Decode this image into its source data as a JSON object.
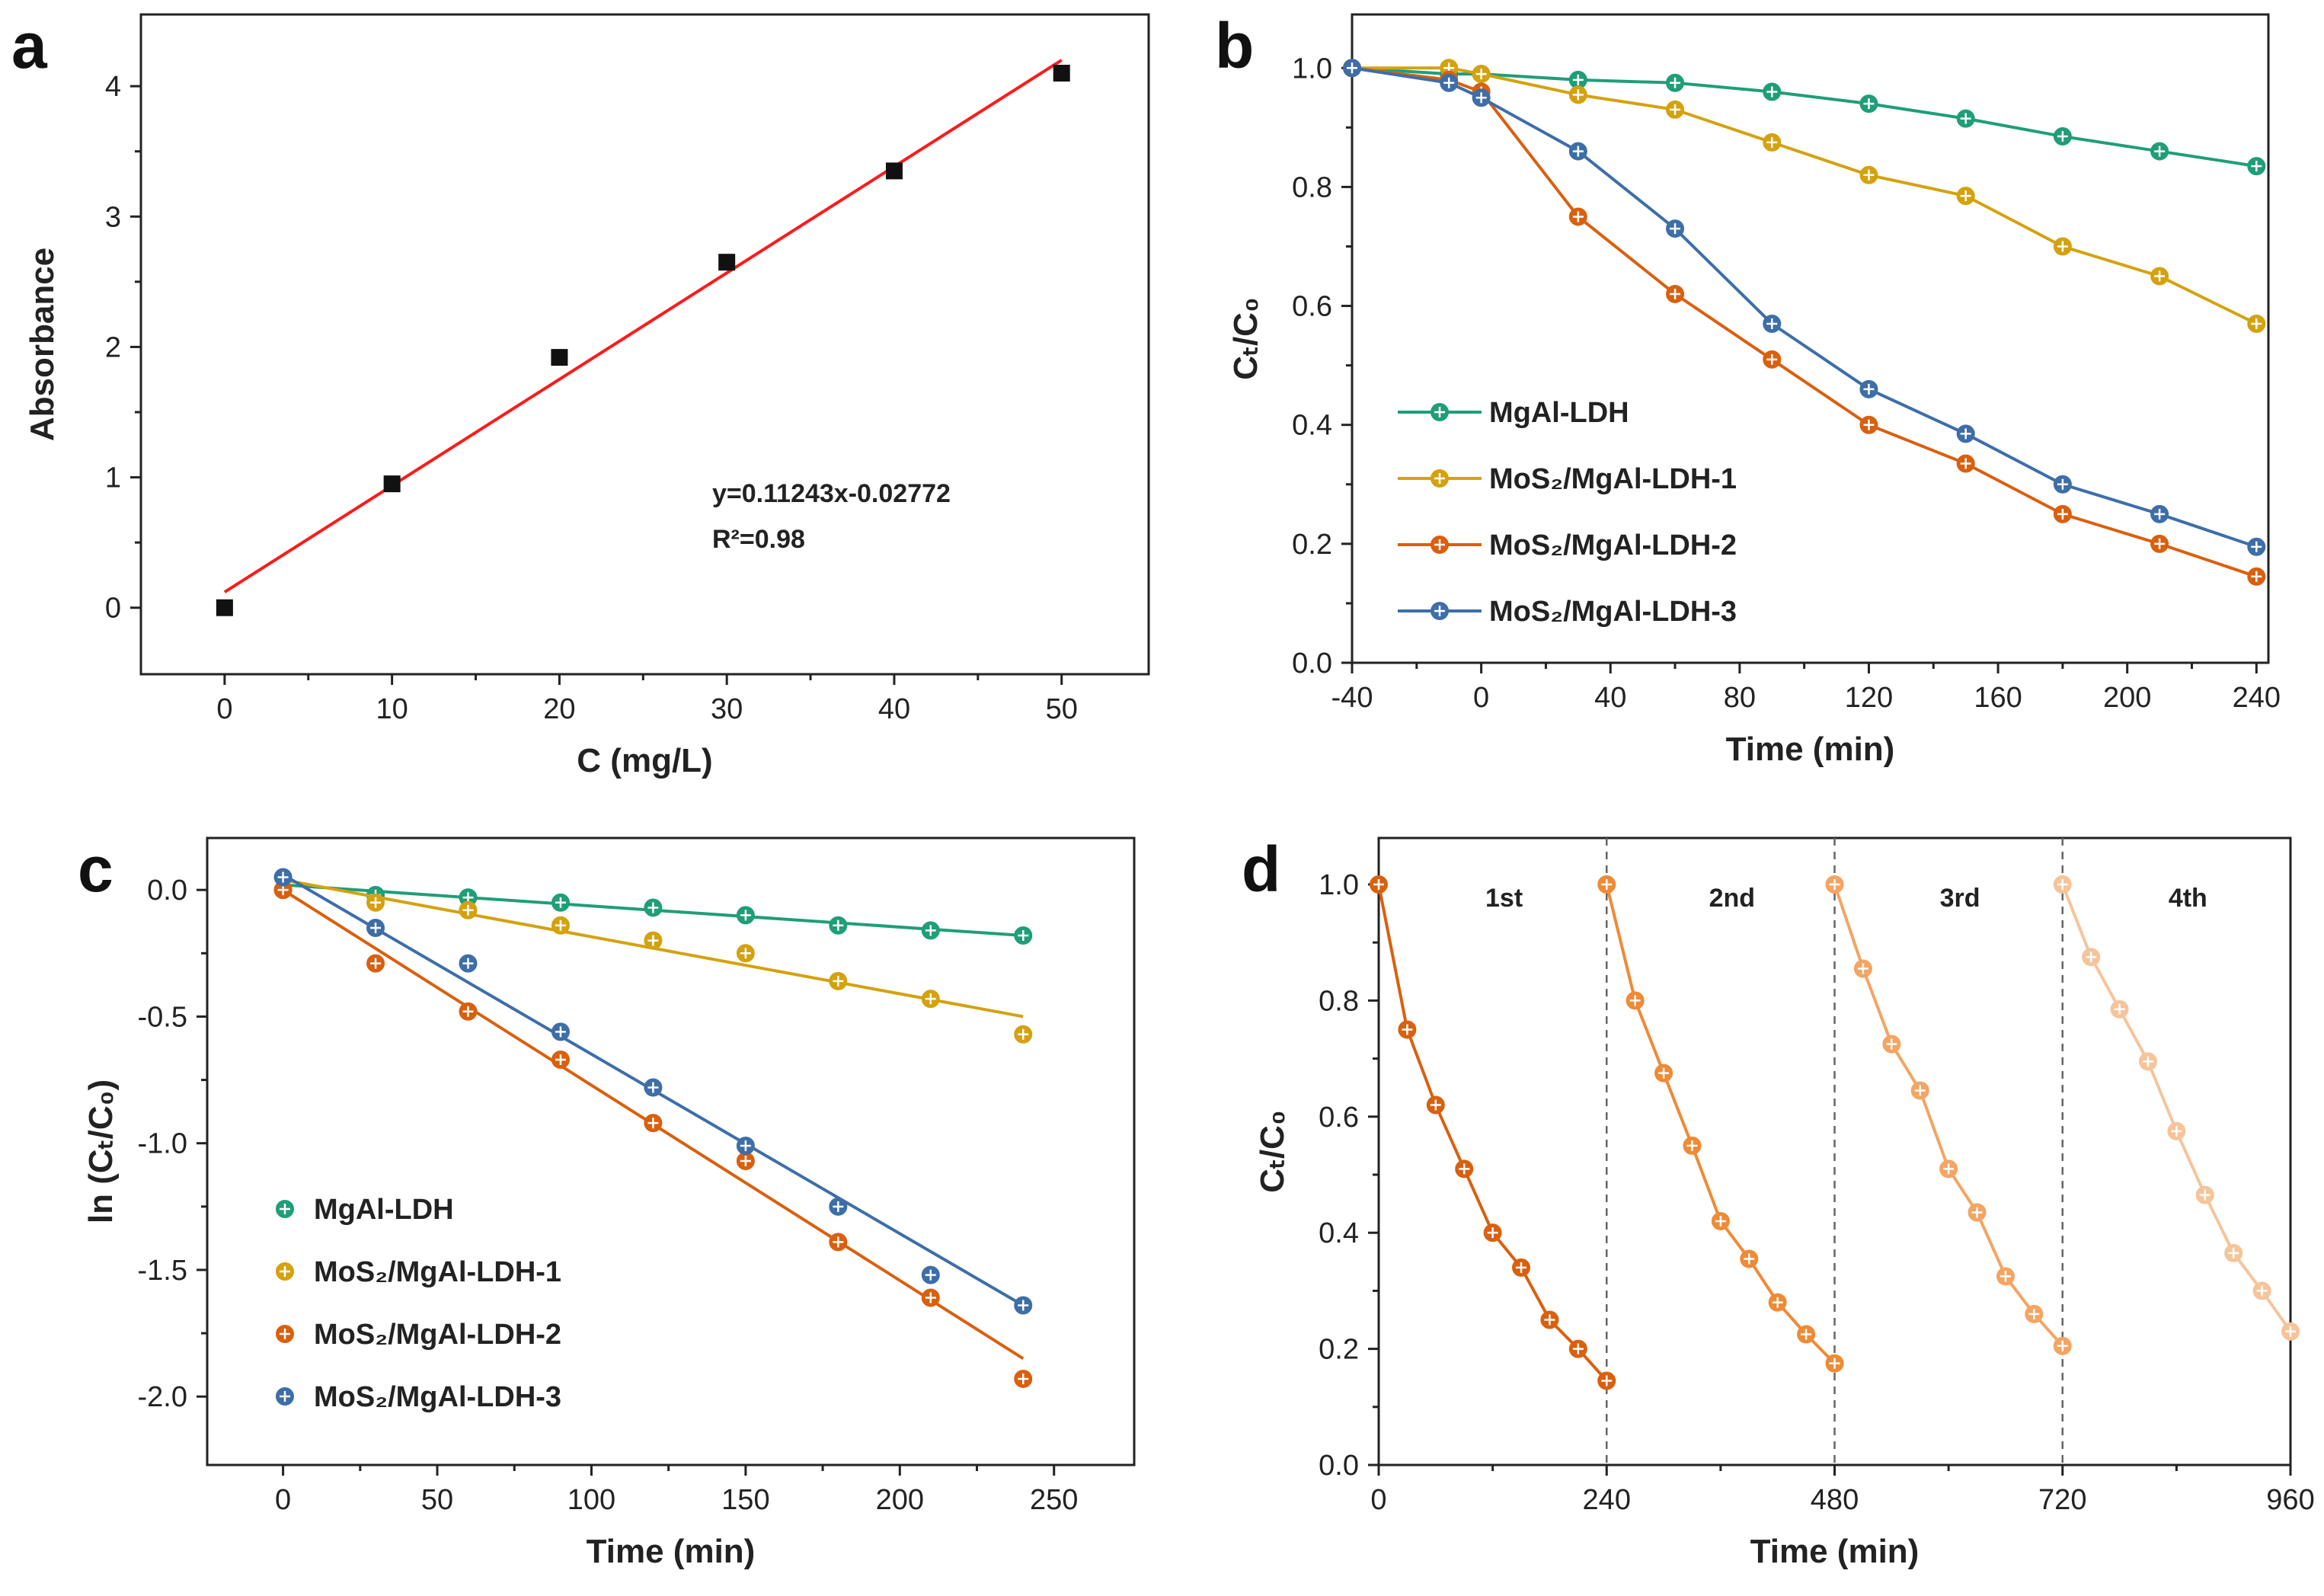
{
  "chart_data": [
    {
      "panel": "a",
      "type": "scatter",
      "xlabel": "C (mg/L)",
      "ylabel": "Absorbance",
      "xlim": [
        -5,
        55.2
      ],
      "ylim": [
        -0.51,
        4.55
      ],
      "xticks": [
        0,
        10,
        20,
        30,
        40,
        50
      ],
      "yticks": [
        0,
        1,
        2,
        3,
        4
      ],
      "series": [
        {
          "name": "data",
          "color": "#111111",
          "marker": "square",
          "x": [
            0,
            10,
            20,
            30,
            40,
            50
          ],
          "y": [
            0.0,
            0.95,
            1.92,
            2.65,
            3.35,
            4.1
          ]
        },
        {
          "name": "fit",
          "color": "#ff1a1a",
          "marker": "none",
          "x": [
            0,
            50
          ],
          "y": [
            0.12,
            4.2
          ]
        }
      ],
      "annotations": [
        "y=0.11243x-0.02772",
        "R²=0.98"
      ]
    },
    {
      "panel": "b",
      "type": "line",
      "xlabel": "Time (min)",
      "ylabel": "Cₜ/C₀",
      "xlim": [
        -40,
        243.7
      ],
      "ylim": [
        0,
        1.09
      ],
      "xticks": [
        -40,
        0,
        40,
        80,
        120,
        160,
        200,
        240
      ],
      "yticks": [
        0.0,
        0.2,
        0.4,
        0.6,
        0.8,
        1.0
      ],
      "x": [
        -40,
        -10,
        0,
        30,
        60,
        90,
        120,
        150,
        180,
        210,
        240
      ],
      "series": [
        {
          "name": "MgAl-LDH",
          "color": "#1f9e78",
          "y": [
            1.0,
            0.99,
            0.99,
            0.98,
            0.975,
            0.96,
            0.94,
            0.915,
            0.885,
            0.86,
            0.835
          ]
        },
        {
          "name": "MoS₂/MgAl-LDH-1",
          "color": "#d4a20f",
          "y": [
            1.0,
            1.0,
            0.99,
            0.955,
            0.93,
            0.875,
            0.82,
            0.785,
            0.7,
            0.65,
            0.57
          ]
        },
        {
          "name": "MoS₂/MgAl-LDH-2",
          "color": "#d9600f",
          "y": [
            1.0,
            0.98,
            0.96,
            0.75,
            0.62,
            0.51,
            0.4,
            0.335,
            0.25,
            0.2,
            0.145
          ]
        },
        {
          "name": "MoS₂/MgAl-LDH-3",
          "color": "#3d6ea8",
          "y": [
            1.0,
            0.975,
            0.95,
            0.86,
            0.73,
            0.57,
            0.46,
            0.385,
            0.3,
            0.25,
            0.195
          ]
        }
      ],
      "legend": "left-middle"
    },
    {
      "panel": "c",
      "type": "scatter",
      "xlabel": "Time (min)",
      "ylabel": "ln (Cₜ/C₀)",
      "xlim": [
        -24.6,
        276
      ],
      "ylim": [
        -2.27,
        0.205
      ],
      "xticks": [
        0,
        50,
        100,
        150,
        200,
        250
      ],
      "yticks": [
        0.0,
        -0.5,
        -1.0,
        -1.5,
        -2.0
      ],
      "x": [
        0,
        30,
        60,
        90,
        120,
        150,
        180,
        210,
        240
      ],
      "series": [
        {
          "name": "MgAl-LDH",
          "color": "#1f9e78",
          "y": [
            0,
            -0.02,
            -0.03,
            -0.05,
            -0.07,
            -0.1,
            -0.14,
            -0.16,
            -0.18
          ],
          "fit": [
            0.02,
            -0.18
          ]
        },
        {
          "name": "MoS₂/MgAl-LDH-1",
          "color": "#d4a20f",
          "y": [
            0,
            -0.05,
            -0.08,
            -0.14,
            -0.2,
            -0.25,
            -0.36,
            -0.43,
            -0.57
          ],
          "fit": [
            0.04,
            -0.5
          ]
        },
        {
          "name": "MoS₂/MgAl-LDH-2",
          "color": "#d9600f",
          "y": [
            0,
            -0.29,
            -0.48,
            -0.67,
            -0.92,
            -1.07,
            -1.39,
            -1.61,
            -1.93
          ],
          "fit": [
            0.0,
            -1.85
          ]
        },
        {
          "name": "MoS₂/MgAl-LDH-3",
          "color": "#3d6ea8",
          "y": [
            0.05,
            -0.15,
            -0.29,
            -0.56,
            -0.78,
            -1.01,
            -1.25,
            -1.52,
            -1.64
          ],
          "fit": [
            0.06,
            -1.64
          ]
        }
      ],
      "legend": "bottom-left"
    },
    {
      "panel": "d",
      "type": "line",
      "xlabel": "Time (min)",
      "ylabel": "Cₜ/C₀",
      "xlim": [
        0,
        960
      ],
      "ylim": [
        0,
        1.08
      ],
      "xticks": [
        0,
        240,
        480,
        720,
        960
      ],
      "yticks": [
        0.0,
        0.2,
        0.4,
        0.6,
        0.8,
        1.0
      ],
      "cycle_boundaries": [
        240,
        480,
        720
      ],
      "series": [
        {
          "name": "1st",
          "color": "#d9600f",
          "x0": 0,
          "y": [
            1.0,
            0.75,
            0.62,
            0.51,
            0.4,
            0.34,
            0.25,
            0.2,
            0.145
          ]
        },
        {
          "name": "2nd",
          "color": "#ef8a35",
          "x0": 240,
          "y": [
            1.0,
            0.8,
            0.675,
            0.55,
            0.42,
            0.355,
            0.28,
            0.225,
            0.175
          ]
        },
        {
          "name": "3rd",
          "color": "#f4a463",
          "x0": 480,
          "y": [
            1.0,
            0.855,
            0.725,
            0.645,
            0.51,
            0.435,
            0.325,
            0.26,
            0.205
          ]
        },
        {
          "name": "4th",
          "color": "#f6c49a",
          "x0": 720,
          "y": [
            1.0,
            0.875,
            0.785,
            0.695,
            0.575,
            0.465,
            0.365,
            0.3,
            0.23
          ]
        }
      ]
    }
  ]
}
